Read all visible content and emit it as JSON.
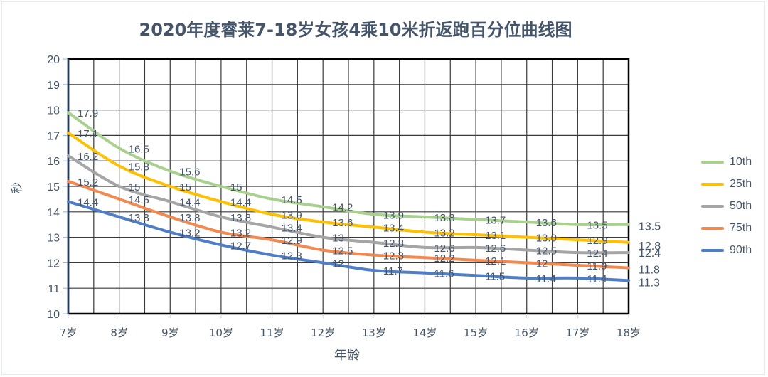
{
  "chart_data": {
    "type": "line",
    "title": "2020年度睿莱7-18岁女孩4乘10米折返跑百分位曲线图",
    "xlabel": "年龄",
    "ylabel": "秒",
    "categories": [
      "7岁",
      "8岁",
      "9岁",
      "10岁",
      "11岁",
      "12岁",
      "13岁",
      "14岁",
      "15岁",
      "16岁",
      "17岁",
      "18岁"
    ],
    "y_ticks": [
      "20",
      "19",
      "18",
      "17",
      "16",
      "15",
      "14",
      "13",
      "12",
      "11",
      "10"
    ],
    "ylim": [
      10,
      20
    ],
    "grid": true,
    "legend_position": "right",
    "series": [
      {
        "name": "10th",
        "color": "#a9d18e",
        "values": [
          17.9,
          16.5,
          15.6,
          15,
          14.5,
          14.2,
          13.9,
          13.8,
          13.7,
          13.6,
          13.5,
          13.5
        ],
        "labels": [
          "17.9",
          "16.5",
          "15.6",
          "15",
          "14.5",
          "14.2",
          "13.9",
          "13.8",
          "13.7",
          "13.6",
          "13.5",
          "13.5"
        ]
      },
      {
        "name": "25th",
        "color": "#ffc000",
        "values": [
          17.1,
          15.8,
          15,
          14.4,
          13.9,
          13.6,
          13.4,
          13.2,
          13.1,
          13.0,
          12.9,
          12.8
        ],
        "labels": [
          "17.1",
          "15.8",
          "15",
          "14.4",
          "13.9",
          "13.6",
          "13.4",
          "13.2",
          "13.1",
          "13.0",
          "12.9",
          "12.8"
        ]
      },
      {
        "name": "50th",
        "color": "#a5a5a5",
        "values": [
          16.2,
          15,
          14.4,
          13.8,
          13.4,
          13,
          12.8,
          12.6,
          12.6,
          12.5,
          12.4,
          12.4
        ],
        "labels": [
          "16.2",
          "15",
          "14.4",
          "13.8",
          "13.4",
          "13",
          "12.8",
          "12.6",
          "12.6",
          "12.5",
          "12.4",
          "12.4"
        ]
      },
      {
        "name": "75th",
        "color": "#f4894f",
        "values": [
          15.2,
          14.5,
          13.8,
          13.2,
          12.9,
          12.5,
          12.3,
          12.2,
          12.1,
          12,
          11.9,
          11.8
        ],
        "labels": [
          "15.2",
          "14.5",
          "13.8",
          "13.2",
          "12.9",
          "12.5",
          "12.3",
          "12.2",
          "12.1",
          "12",
          "11.9",
          "11.8"
        ]
      },
      {
        "name": "90th",
        "color": "#4f7ec8",
        "values": [
          14.4,
          13.8,
          13.2,
          12.7,
          12.3,
          12,
          11.7,
          11.6,
          11.5,
          11.4,
          11.4,
          11.3
        ],
        "labels": [
          "14.4",
          "13.8",
          "13.2",
          "12.7",
          "12.3",
          "12",
          "11.7",
          "11.6",
          "11.5",
          "11.4",
          "11.4",
          "11.3"
        ]
      }
    ]
  }
}
